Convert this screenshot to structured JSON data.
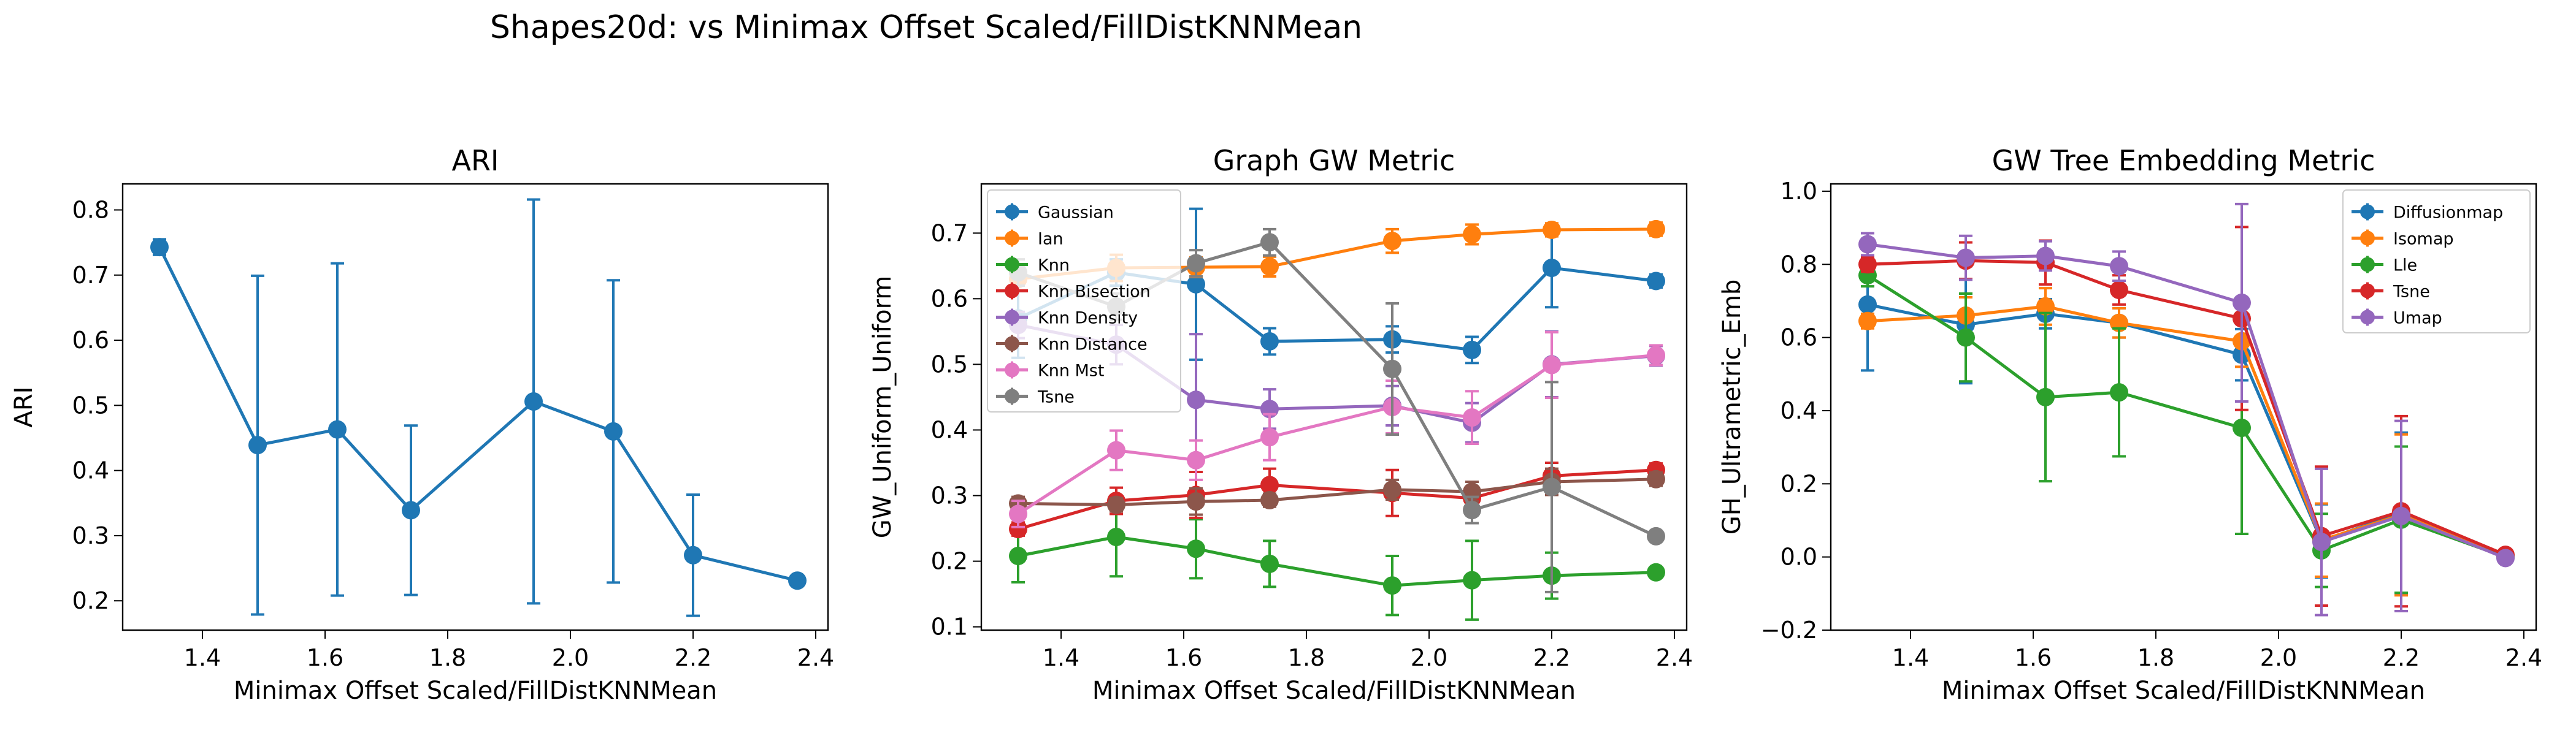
{
  "figure": {
    "suptitle": "Shapes20d: vs Minimax Offset Scaled/FillDistKNNMean"
  },
  "colors": {
    "blue": "#1f77b4",
    "orange": "#ff7f0e",
    "green": "#2ca02c",
    "red": "#d62728",
    "purple": "#9467bd",
    "brown": "#8c564b",
    "pink": "#e377c2",
    "gray": "#7f7f7f"
  },
  "chart_data": [
    {
      "type": "line",
      "title": "ARI",
      "xlabel": "Minimax Offset Scaled/FillDistKNNMean",
      "ylabel": "ARI",
      "xlim": [
        1.27,
        2.42
      ],
      "ylim": [
        0.155,
        0.84
      ],
      "xticks": [
        1.4,
        1.6,
        1.8,
        2.0,
        2.2,
        2.4
      ],
      "yticks": [
        0.2,
        0.3,
        0.4,
        0.5,
        0.6,
        0.7,
        0.8
      ],
      "x": [
        1.33,
        1.49,
        1.62,
        1.74,
        1.94,
        2.07,
        2.2,
        2.37
      ],
      "legend": null,
      "series": [
        {
          "name": "",
          "color": "#1f77b4",
          "values": [
            0.743,
            0.439,
            0.463,
            0.339,
            0.506,
            0.46,
            0.27,
            0.231
          ],
          "errors": [
            0.012,
            0.26,
            0.255,
            0.13,
            0.31,
            0.232,
            0.093,
            0.006
          ]
        }
      ]
    },
    {
      "type": "line",
      "title": "Graph GW Metric",
      "xlabel": "Minimax Offset Scaled/FillDistKNNMean",
      "ylabel": "GW_Uniform_Uniform",
      "xlim": [
        1.27,
        2.42
      ],
      "ylim": [
        0.095,
        0.775
      ],
      "xticks": [
        1.4,
        1.6,
        1.8,
        2.0,
        2.2,
        2.4
      ],
      "yticks": [
        0.1,
        0.2,
        0.3,
        0.4,
        0.5,
        0.6,
        0.7
      ],
      "x": [
        1.33,
        1.49,
        1.62,
        1.74,
        1.94,
        2.07,
        2.2,
        2.37
      ],
      "legend": "top-left",
      "series": [
        {
          "name": "Gaussian",
          "color": "#1f77b4",
          "values": [
            0.57,
            0.64,
            0.622,
            0.535,
            0.538,
            0.522,
            0.647,
            0.627
          ],
          "errors": [
            0.06,
            0.02,
            0.115,
            0.02,
            0.02,
            0.02,
            0.06,
            0.01
          ]
        },
        {
          "name": "Ian",
          "color": "#ff7f0e",
          "values": [
            0.63,
            0.647,
            0.648,
            0.649,
            0.688,
            0.698,
            0.705,
            0.706
          ],
          "errors": [
            0.01,
            0.02,
            0.015,
            0.015,
            0.018,
            0.015,
            0.01,
            0.01
          ]
        },
        {
          "name": "Knn",
          "color": "#2ca02c",
          "values": [
            0.208,
            0.237,
            0.219,
            0.196,
            0.163,
            0.171,
            0.178,
            0.183
          ],
          "errors": [
            0.04,
            0.06,
            0.045,
            0.035,
            0.045,
            0.06,
            0.035,
            0.005
          ]
        },
        {
          "name": "Knn Bisection",
          "color": "#d62728",
          "values": [
            0.249,
            0.292,
            0.301,
            0.316,
            0.304,
            0.296,
            0.33,
            0.339
          ],
          "errors": [
            0.01,
            0.02,
            0.035,
            0.025,
            0.035,
            0.025,
            0.02,
            0.01
          ]
        },
        {
          "name": "Knn Density",
          "color": "#9467bd",
          "values": [
            0.56,
            0.53,
            0.446,
            0.432,
            0.437,
            0.411,
            0.5,
            0.513
          ],
          "errors": [
            0.02,
            0.03,
            0.1,
            0.03,
            0.03,
            0.03,
            0.05,
            0.015
          ]
        },
        {
          "name": "Knn Distance",
          "color": "#8c564b",
          "values": [
            0.288,
            0.286,
            0.291,
            0.293,
            0.309,
            0.306,
            0.321,
            0.325
          ],
          "errors": [
            0.01,
            0.01,
            0.02,
            0.01,
            0.015,
            0.015,
            0.02,
            0.01
          ]
        },
        {
          "name": "Knn Mst",
          "color": "#e377c2",
          "values": [
            0.272,
            0.369,
            0.354,
            0.389,
            0.435,
            0.419,
            0.499,
            0.514
          ],
          "errors": [
            0.02,
            0.03,
            0.03,
            0.035,
            0.04,
            0.04,
            0.05,
            0.015
          ]
        },
        {
          "name": "Tsne",
          "color": "#7f7f7f",
          "values": [
            0.64,
            0.588,
            0.654,
            0.686,
            0.493,
            0.278,
            0.313,
            0.238
          ],
          "errors": [
            0.02,
            0.02,
            0.02,
            0.02,
            0.1,
            0.02,
            0.16,
            0.005
          ]
        }
      ]
    },
    {
      "type": "line",
      "title": "GW Tree Embedding Metric",
      "xlabel": "Minimax Offset Scaled/FillDistKNNMean",
      "ylabel": "GH_Ultrametric_Emb",
      "xlim": [
        1.27,
        2.42
      ],
      "ylim": [
        -0.2,
        1.02
      ],
      "xticks": [
        1.4,
        1.6,
        1.8,
        2.0,
        2.2,
        2.4
      ],
      "yticks": [
        -0.2,
        0.0,
        0.2,
        0.4,
        0.6,
        0.8,
        1.0
      ],
      "x": [
        1.33,
        1.49,
        1.62,
        1.74,
        1.94,
        2.07,
        2.2,
        2.37
      ],
      "legend": "top-right",
      "series": [
        {
          "name": "Diffusionmap",
          "color": "#1f77b4",
          "values": [
            0.69,
            0.635,
            0.665,
            0.64,
            0.553,
            0.044,
            0.12,
            0.001
          ],
          "errors": [
            0.18,
            0.16,
            0.04,
            0.04,
            0.07,
            0.1,
            0.22,
            0.005
          ]
        },
        {
          "name": "Isomap",
          "color": "#ff7f0e",
          "values": [
            0.645,
            0.66,
            0.685,
            0.64,
            0.59,
            0.046,
            0.115,
            0.002
          ],
          "errors": [
            0.02,
            0.05,
            0.05,
            0.04,
            0.07,
            0.1,
            0.22,
            0.005
          ]
        },
        {
          "name": "Lle",
          "color": "#2ca02c",
          "values": [
            0.77,
            0.6,
            0.437,
            0.45,
            0.353,
            0.018,
            0.102,
            0.0
          ],
          "errors": [
            0.03,
            0.12,
            0.23,
            0.175,
            0.29,
            0.1,
            0.2,
            0.005
          ]
        },
        {
          "name": "Tsne",
          "color": "#d62728",
          "values": [
            0.8,
            0.81,
            0.805,
            0.73,
            0.652,
            0.057,
            0.125,
            0.006
          ],
          "errors": [
            0.02,
            0.05,
            0.06,
            0.04,
            0.25,
            0.19,
            0.26,
            0.005
          ]
        },
        {
          "name": "Umap",
          "color": "#9467bd",
          "values": [
            0.855,
            0.818,
            0.823,
            0.795,
            0.695,
            0.041,
            0.112,
            -0.003
          ],
          "errors": [
            0.03,
            0.06,
            0.04,
            0.04,
            0.27,
            0.2,
            0.26,
            0.005
          ]
        }
      ]
    }
  ]
}
